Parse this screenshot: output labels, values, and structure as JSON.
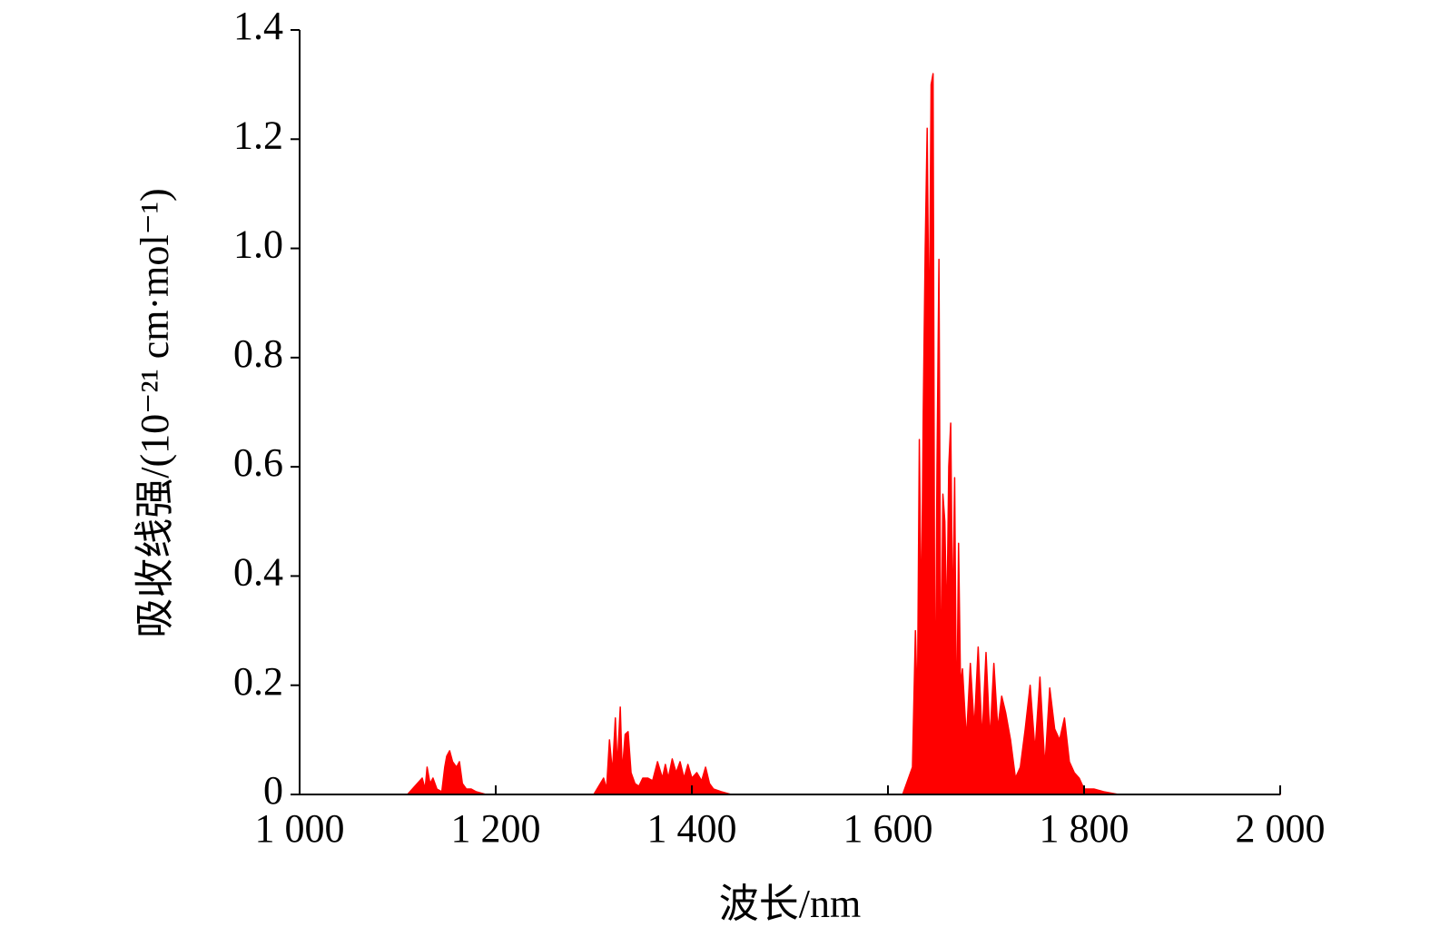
{
  "chart_data": {
    "type": "area",
    "x_label": "波长/nm",
    "y_label": "吸收线强/(10⁻²¹ cm·mol⁻¹)",
    "color": "#ff0000",
    "xlim": [
      1000,
      2000
    ],
    "xticks": [
      {
        "value": 1000,
        "label": "1 000"
      },
      {
        "value": 1200,
        "label": "1 200"
      },
      {
        "value": 1400,
        "label": "1 400"
      },
      {
        "value": 1600,
        "label": "1 600"
      },
      {
        "value": 1800,
        "label": "1 800"
      },
      {
        "value": 2000,
        "label": "2 000"
      }
    ],
    "ylim": [
      0,
      1.4
    ],
    "yticks": [
      0,
      0.2,
      0.4,
      0.6,
      0.8,
      {
        "value": 1,
        "label": "1.0"
      },
      1.2,
      1.4
    ],
    "x": [
      1000,
      1110,
      1115,
      1120,
      1125,
      1128,
      1130,
      1133,
      1136,
      1140,
      1145,
      1148,
      1150,
      1153,
      1156,
      1160,
      1163,
      1166,
      1170,
      1175,
      1180,
      1190,
      1300,
      1310,
      1313,
      1316,
      1319,
      1322,
      1324,
      1327,
      1329,
      1332,
      1335,
      1338,
      1342,
      1346,
      1350,
      1355,
      1360,
      1365,
      1370,
      1373,
      1376,
      1380,
      1384,
      1388,
      1392,
      1396,
      1400,
      1405,
      1410,
      1414,
      1418,
      1422,
      1430,
      1440,
      1600,
      1615,
      1625,
      1628,
      1630,
      1632,
      1634,
      1636,
      1638,
      1640,
      1642,
      1644,
      1646,
      1648,
      1650,
      1652,
      1654,
      1656,
      1658,
      1660,
      1662,
      1664,
      1666,
      1668,
      1670,
      1672,
      1674,
      1676,
      1680,
      1684,
      1688,
      1692,
      1696,
      1700,
      1704,
      1708,
      1712,
      1716,
      1720,
      1725,
      1730,
      1735,
      1740,
      1745,
      1750,
      1755,
      1760,
      1765,
      1770,
      1775,
      1780,
      1785,
      1790,
      1795,
      1800,
      1810,
      1820,
      1835,
      1850,
      2000
    ],
    "values": [
      0,
      0,
      0.01,
      0.02,
      0.03,
      0.01,
      0.05,
      0.02,
      0.03,
      0.01,
      0.005,
      0.05,
      0.07,
      0.08,
      0.06,
      0.05,
      0.06,
      0.02,
      0.01,
      0.01,
      0.005,
      0,
      0,
      0.03,
      0.01,
      0.1,
      0.04,
      0.14,
      0.05,
      0.16,
      0.04,
      0.11,
      0.115,
      0.04,
      0.02,
      0.015,
      0.03,
      0.03,
      0.025,
      0.06,
      0.03,
      0.055,
      0.03,
      0.065,
      0.04,
      0.06,
      0.03,
      0.055,
      0.03,
      0.04,
      0.025,
      0.05,
      0.02,
      0.01,
      0.005,
      0,
      0,
      0,
      0.05,
      0.3,
      0.15,
      0.65,
      0.3,
      0.7,
      1.0,
      1.22,
      0.8,
      1.3,
      1.32,
      0.05,
      0.6,
      0.98,
      0.15,
      0.55,
      0.5,
      0.3,
      0.6,
      0.68,
      0.3,
      0.58,
      0.1,
      0.46,
      0.2,
      0.23,
      0.1,
      0.24,
      0.12,
      0.27,
      0.1,
      0.26,
      0.1,
      0.24,
      0.12,
      0.18,
      0.15,
      0.1,
      0.03,
      0.05,
      0.12,
      0.2,
      0.08,
      0.215,
      0.05,
      0.195,
      0.12,
      0.1,
      0.14,
      0.06,
      0.04,
      0.03,
      0.01,
      0.01,
      0.005,
      0,
      0,
      0
    ]
  }
}
